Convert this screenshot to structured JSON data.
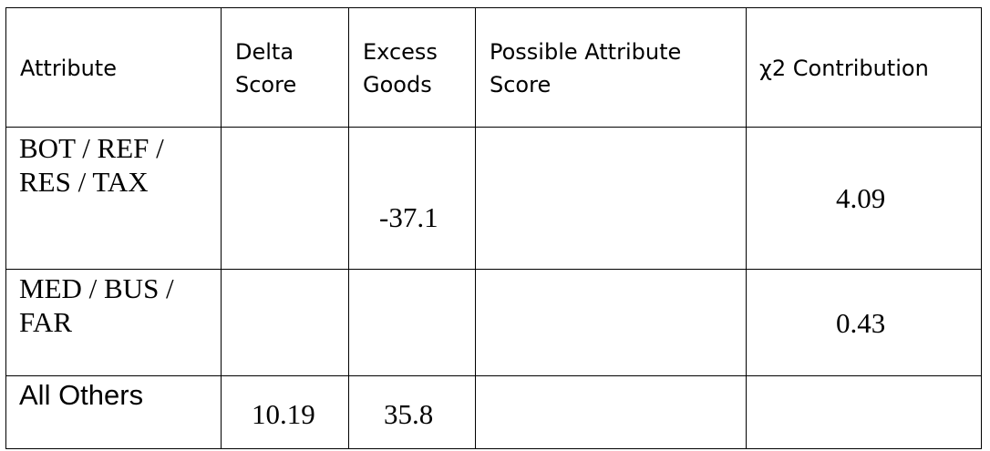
{
  "table": {
    "headers": {
      "attribute": "Attribute",
      "delta_score": [
        "Delta",
        "Score"
      ],
      "excess_goods": [
        "Excess",
        "Goods"
      ],
      "possible_attribute_score": [
        "Possible Attribute",
        "Score"
      ],
      "chi2_contribution": "χ2 Contribution"
    },
    "rows": [
      {
        "attribute": [
          "BOT / REF /",
          "RES / TAX"
        ],
        "delta_score": "",
        "excess_goods": "-37.1",
        "possible_attribute_score": "",
        "chi2_contribution": "4.09"
      },
      {
        "attribute": [
          "MED / BUS /",
          "FAR"
        ],
        "delta_score": "",
        "excess_goods": "",
        "possible_attribute_score": "",
        "chi2_contribution": "0.43"
      },
      {
        "attribute": [
          "All Others"
        ],
        "delta_score": "10.19",
        "excess_goods": "35.8",
        "possible_attribute_score": "",
        "chi2_contribution": ""
      }
    ]
  }
}
